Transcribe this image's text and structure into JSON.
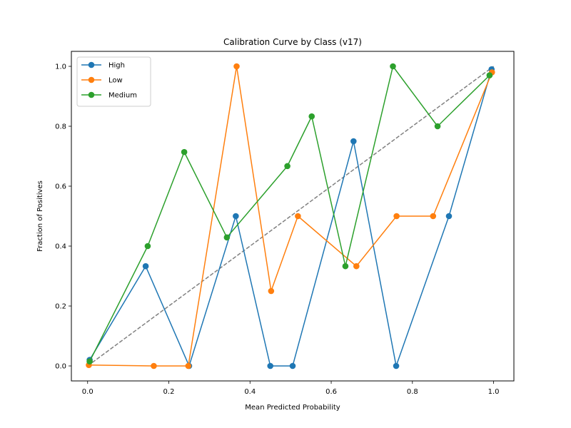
{
  "chart_data": {
    "type": "line",
    "title": "Calibration Curve by Class (v17)",
    "xlabel": "Mean Predicted Probability",
    "ylabel": "Fraction of Positives",
    "xlim": [
      -0.04,
      1.05
    ],
    "ylim": [
      -0.05,
      1.05
    ],
    "xticks": [
      "0.0",
      "0.2",
      "0.4",
      "0.6",
      "0.8",
      "1.0"
    ],
    "yticks": [
      "0.0",
      "0.2",
      "0.4",
      "0.6",
      "0.8",
      "1.0"
    ],
    "grid": false,
    "legend_position": "top-left",
    "reference_line": {
      "x": [
        0,
        1
      ],
      "y": [
        0,
        1
      ],
      "style": "dashed",
      "color": "#808080"
    },
    "series": [
      {
        "name": "High",
        "color": "#1f77b4",
        "x": [
          0.005,
          0.143,
          0.25,
          0.365,
          0.45,
          0.505,
          0.655,
          0.76,
          0.89,
          0.995
        ],
        "y": [
          0.02,
          0.333,
          0.0,
          0.5,
          0.0,
          0.0,
          0.75,
          0.0,
          0.5,
          0.99
        ]
      },
      {
        "name": "Low",
        "color": "#ff7f0e",
        "x": [
          0.003,
          0.163,
          0.248,
          0.367,
          0.452,
          0.518,
          0.662,
          0.761,
          0.851,
          0.996
        ],
        "y": [
          0.003,
          0.0,
          0.0,
          1.0,
          0.25,
          0.5,
          0.333,
          0.5,
          0.5,
          0.98
        ]
      },
      {
        "name": "Medium",
        "color": "#2ca02c",
        "x": [
          0.005,
          0.148,
          0.238,
          0.343,
          0.492,
          0.552,
          0.635,
          0.752,
          0.862,
          0.99
        ],
        "y": [
          0.015,
          0.4,
          0.714,
          0.429,
          0.667,
          0.833,
          0.333,
          1.0,
          0.8,
          0.97
        ]
      }
    ]
  }
}
